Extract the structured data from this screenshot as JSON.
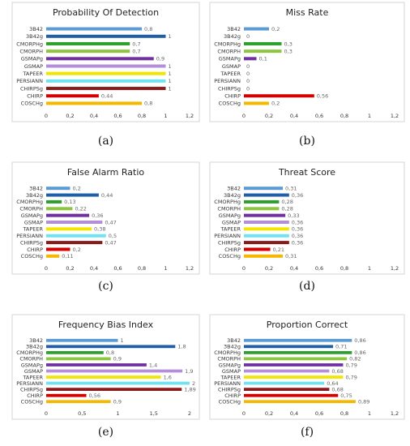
{
  "palette": {
    "3B42": "#5b9bd5",
    "3B42g": "#1f5fa8",
    "CMORPHg": "#2ca02c",
    "CMORPH": "#8cc63f",
    "GSMAPg": "#7030a0",
    "GSMAP": "#b48ed8",
    "TAPEER": "#f2e600",
    "PERSIANN": "#6fe3f2",
    "CHIRPSg": "#8b1a1a",
    "CHIRP": "#d40000",
    "COSCHg": "#f5b800"
  },
  "chart_data": [
    {
      "type": "bar",
      "orientation": "horizontal",
      "title": "Probability Of Detection",
      "panel_letter": "(a)",
      "categories": [
        "3B42",
        "3B42g",
        "CMORPHg",
        "CMORPH",
        "GSMAPg",
        "GSMAP",
        "TAPEER",
        "PERSIANN",
        "CHIRPSg",
        "CHIRP",
        "COSCHg"
      ],
      "values": [
        0.8,
        1,
        0.7,
        0.7,
        0.9,
        1,
        1,
        1,
        1,
        0.44,
        0.8
      ],
      "value_labels": [
        "0,8",
        "1",
        "0,7",
        "0,7",
        "0,9",
        "1",
        "1",
        "1",
        "1",
        "0,44",
        "0,8"
      ],
      "xlim": [
        0,
        1.2
      ],
      "xticks": [
        "0",
        "0,2",
        "0,4",
        "0,6",
        "0,8",
        "1",
        "1,2"
      ]
    },
    {
      "type": "bar",
      "orientation": "horizontal",
      "title": "Miss Rate",
      "panel_letter": "(b)",
      "categories": [
        "3B42",
        "3B42g",
        "CMORPHg",
        "CMORPH",
        "GSMAPg",
        "GSMAP",
        "TAPEER",
        "PERSIANN",
        "CHIRPSg",
        "CHIRP",
        "COSCHg"
      ],
      "values": [
        0.2,
        0,
        0.3,
        0.3,
        0.1,
        0,
        0,
        0,
        0,
        0.56,
        0.2
      ],
      "value_labels": [
        "0,2",
        "0",
        "0,3",
        "0,3",
        "0,1",
        "0",
        "0",
        "0",
        "0",
        "0,56",
        "0,2"
      ],
      "xlim": [
        0,
        1.2
      ],
      "xticks": [
        "0",
        "0,2",
        "0,4",
        "0,6",
        "0,8",
        "1",
        "1,2"
      ]
    },
    {
      "type": "bar",
      "orientation": "horizontal",
      "title": "False Alarm Ratio",
      "panel_letter": "(c)",
      "categories": [
        "3B42",
        "3B42g",
        "CMORPHg",
        "CMORPH",
        "GSMAPg",
        "GSMAP",
        "TAPEER",
        "PERSIANN",
        "CHIRPSg",
        "CHIRP",
        "COSCHg"
      ],
      "values": [
        0.2,
        0.44,
        0.13,
        0.22,
        0.36,
        0.47,
        0.38,
        0.5,
        0.47,
        0.2,
        0.11
      ],
      "value_labels": [
        "0,2",
        "0,44",
        "0,13",
        "0,22",
        "0,36",
        "0,47",
        "0,38",
        "0,5",
        "0,47",
        "0,2",
        "0,11"
      ],
      "xlim": [
        0,
        1.2
      ],
      "xticks": [
        "0",
        "0,2",
        "0,4",
        "0,6",
        "0,8",
        "1",
        "1,2"
      ]
    },
    {
      "type": "bar",
      "orientation": "horizontal",
      "title": "Threat Score",
      "panel_letter": "(d)",
      "categories": [
        "3B42",
        "3B42g",
        "CMORPHg",
        "CMORPH",
        "GSMAPg",
        "GSMAP",
        "TAPEER",
        "PERSIANN",
        "CHIRPSg",
        "CHIRP",
        "COSCHg"
      ],
      "values": [
        0.31,
        0.36,
        0.28,
        0.28,
        0.33,
        0.36,
        0.36,
        0.36,
        0.36,
        0.21,
        0.31
      ],
      "value_labels": [
        "0,31",
        "0,36",
        "0,28",
        "0,28",
        "0,33",
        "0,36",
        "0,36",
        "0,36",
        "0,36",
        "0,21",
        "0,31"
      ],
      "xlim": [
        0,
        1.2
      ],
      "xticks": [
        "0",
        "0,2",
        "0,4",
        "0,6",
        "0,8",
        "1",
        "1,2"
      ]
    },
    {
      "type": "bar",
      "orientation": "horizontal",
      "title": "Frequency Bias Index",
      "panel_letter": "(e)",
      "categories": [
        "3B42",
        "3B42g",
        "CMORPHg",
        "CMORPH",
        "GSMAPg",
        "GSMAP",
        "TAPEER",
        "PERSIANN",
        "CHIRPSg",
        "CHIRP",
        "COSCHg"
      ],
      "values": [
        1,
        1.8,
        0.8,
        0.9,
        1.4,
        1.9,
        1.6,
        2,
        1.89,
        0.56,
        0.9
      ],
      "value_labels": [
        "1",
        "1,8",
        "0,8",
        "0,9",
        "1,4",
        "1,9",
        "1,6",
        "2",
        "1,89",
        "0,56",
        "0,9"
      ],
      "xlim": [
        0,
        2
      ],
      "xticks": [
        "0",
        "0,5",
        "1",
        "1,5",
        "2"
      ]
    },
    {
      "type": "bar",
      "orientation": "horizontal",
      "title": "Proportion Correct",
      "panel_letter": "(f)",
      "categories": [
        "3B42",
        "3B42g",
        "CMORPHg",
        "CMORPH",
        "GSMAPg",
        "GSMAP",
        "TAPEER",
        "PERSIANN",
        "CHIRPSg",
        "CHIRP",
        "COSCHg"
      ],
      "values": [
        0.86,
        0.71,
        0.86,
        0.82,
        0.79,
        0.68,
        0.79,
        0.64,
        0.68,
        0.75,
        0.89
      ],
      "value_labels": [
        "0,86",
        "0,71",
        "0,86",
        "0,82",
        "0,79",
        "0,68",
        "0,79",
        "0,64",
        "0,68",
        "0,75",
        "0,89"
      ],
      "xlim": [
        0,
        1.2
      ],
      "xticks": [
        "0",
        "0,2",
        "0,4",
        "0,6",
        "0,8",
        "1",
        "1,2"
      ]
    }
  ]
}
